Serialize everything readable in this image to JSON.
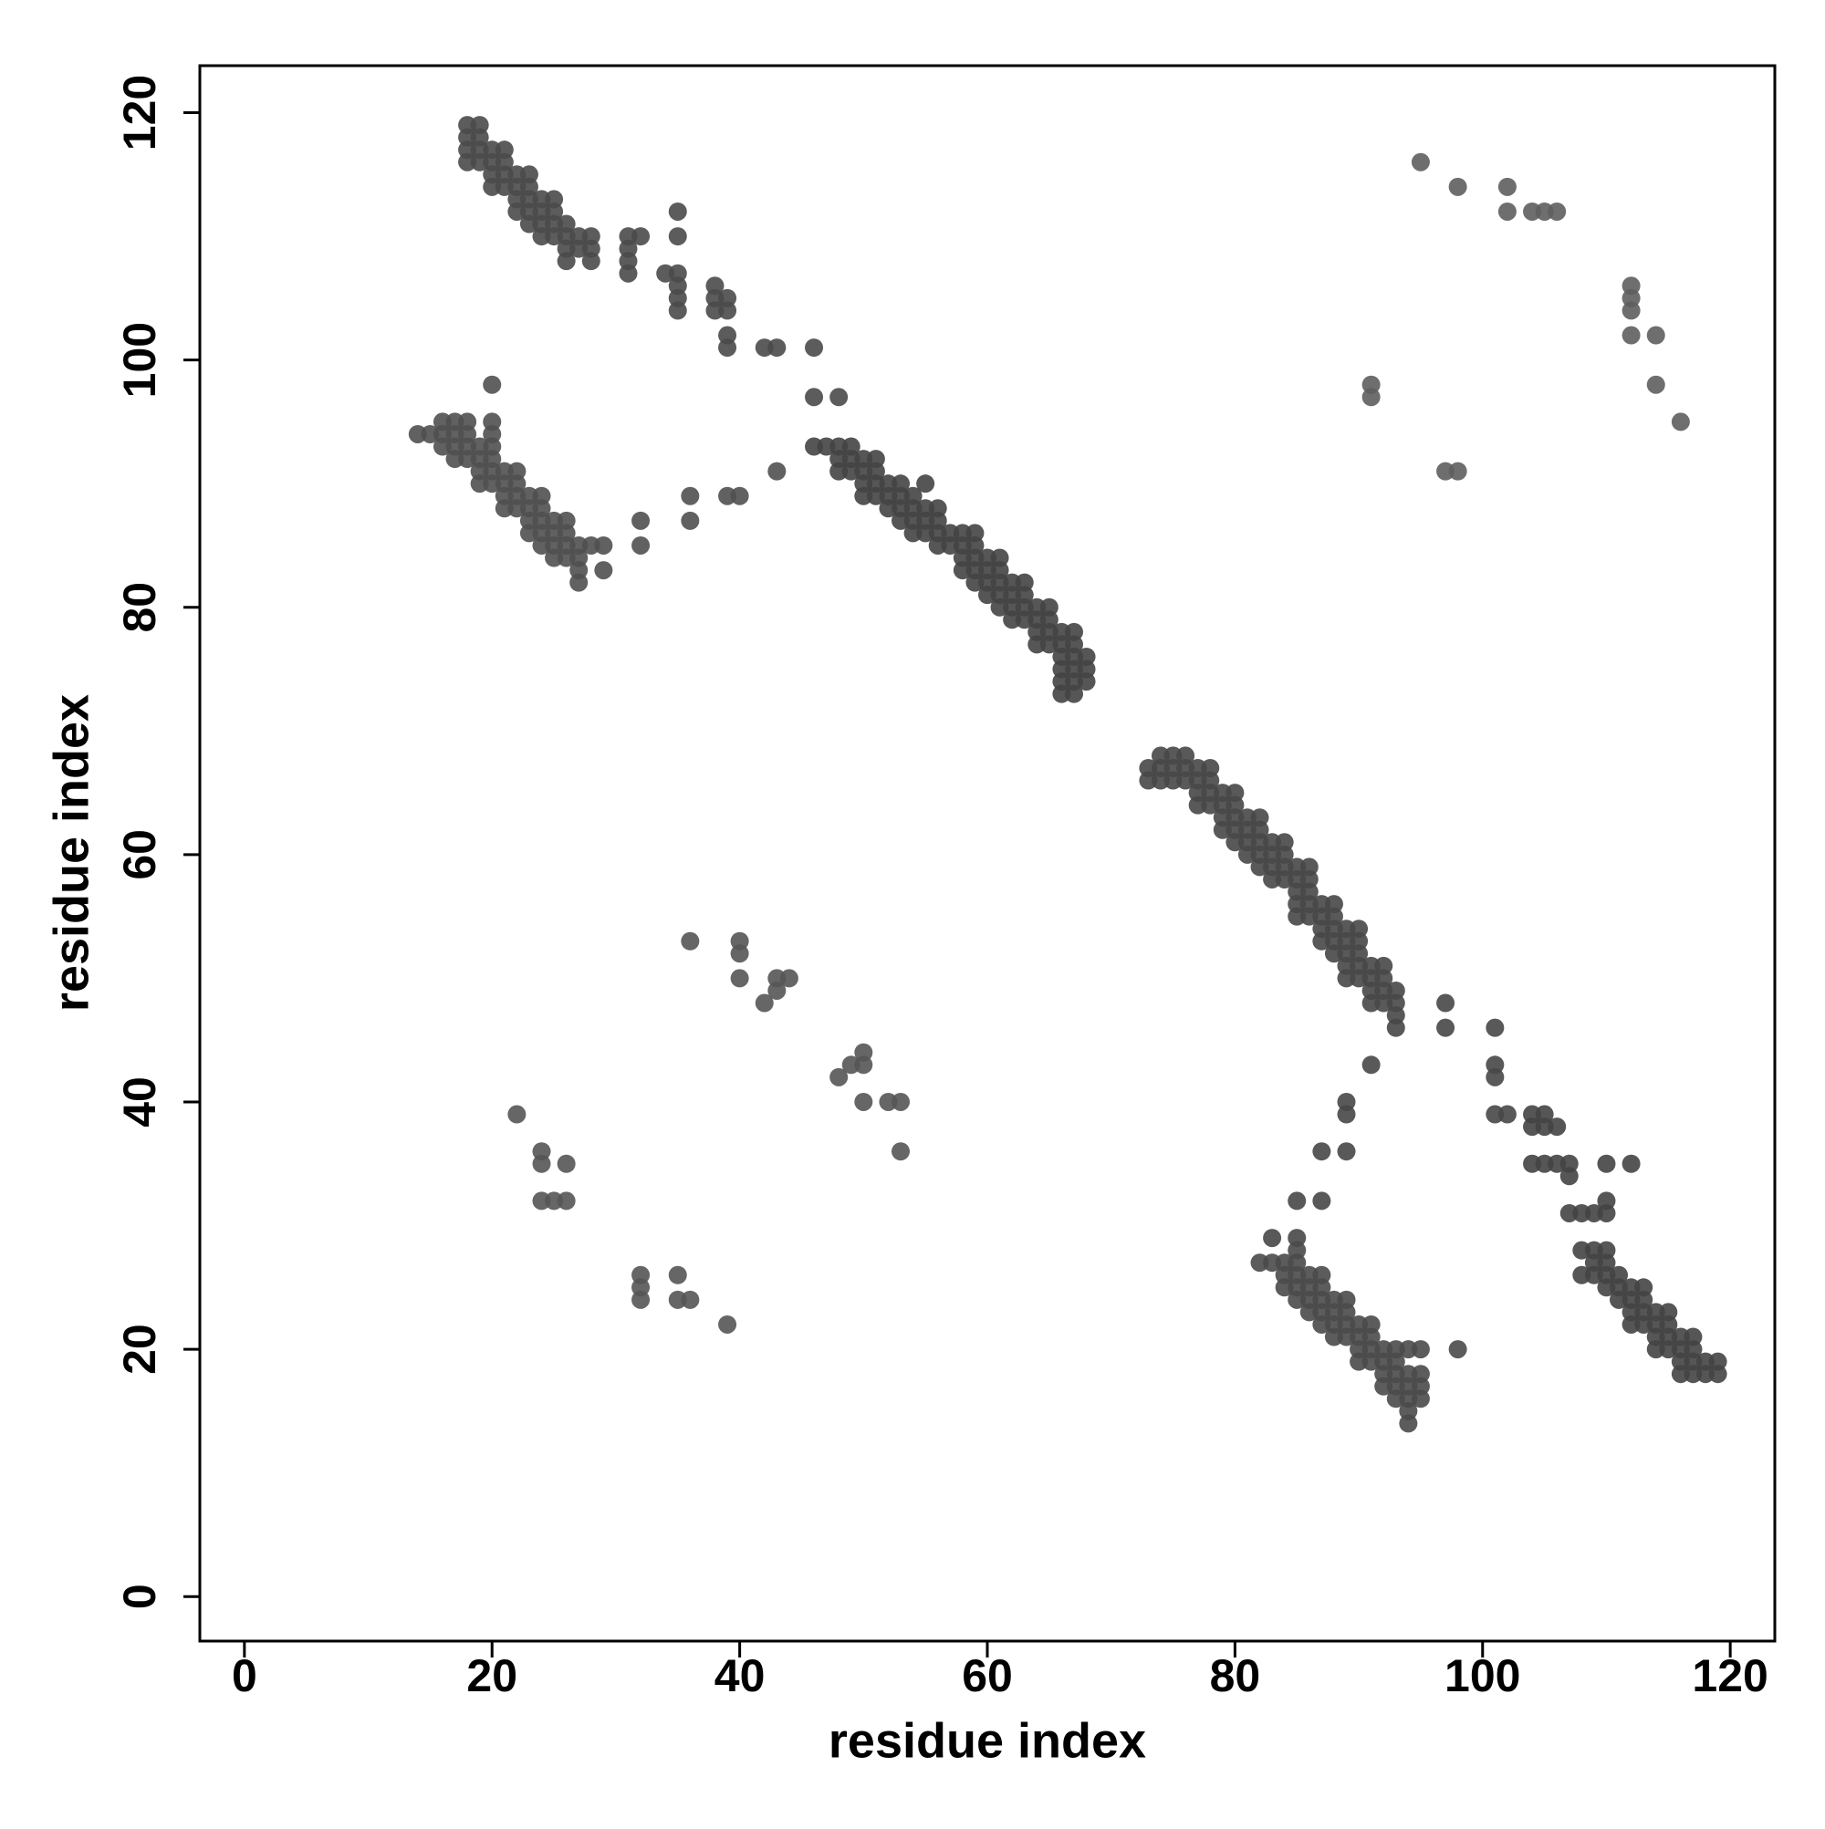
{
  "chart_data": {
    "type": "scatter",
    "x_label": "residue index",
    "y_label": "residue index",
    "xlim": [
      -3.6,
      123.6
    ],
    "ylim": [
      -3.6,
      123.8
    ],
    "xticks": [
      0,
      20,
      40,
      60,
      80,
      100,
      120
    ],
    "yticks": [
      0,
      20,
      40,
      60,
      80,
      100,
      120
    ],
    "series": [
      {
        "color": "#4a4a4a",
        "x": [
          18,
          18,
          18,
          18,
          19,
          19,
          19,
          19,
          20,
          20,
          20,
          20,
          21,
          21,
          21,
          21,
          22,
          22,
          22,
          22,
          23,
          23,
          23,
          23,
          23,
          24,
          24,
          24,
          24,
          25,
          25,
          25,
          25,
          26,
          26,
          26,
          26,
          27,
          27,
          28,
          28,
          28,
          31,
          31,
          31,
          31,
          32,
          34,
          35,
          35,
          35,
          35,
          35,
          35,
          38,
          38,
          38,
          39,
          39,
          39,
          39,
          42,
          43,
          46,
          46,
          48
        ],
        "y": [
          119,
          118,
          117,
          116,
          119,
          118,
          117,
          116,
          117,
          116,
          115,
          114,
          117,
          116,
          115,
          114,
          115,
          114,
          113,
          112,
          115,
          114,
          113,
          112,
          111,
          113,
          112,
          111,
          110,
          113,
          112,
          111,
          110,
          111,
          110,
          109,
          108,
          110,
          109,
          110,
          109,
          108,
          110,
          109,
          108,
          107,
          110,
          107,
          112,
          110,
          107,
          106,
          105,
          104,
          106,
          105,
          104,
          105,
          104,
          102,
          101,
          101,
          101,
          101,
          97,
          97
        ]
      },
      {
        "color": "#505050",
        "x": [
          14,
          15,
          16,
          16,
          16,
          17,
          17,
          17,
          17,
          18,
          18,
          18,
          18,
          19,
          19,
          19,
          19,
          20,
          20,
          20,
          20,
          20,
          20,
          20,
          21,
          21,
          21,
          21,
          22,
          22,
          22,
          22,
          23,
          23,
          23,
          23,
          24,
          24,
          24,
          24,
          24,
          25,
          25,
          25,
          25,
          26,
          26,
          26,
          26,
          27,
          27,
          27,
          27,
          28,
          29,
          29,
          32,
          32,
          36,
          36,
          39,
          40,
          43
        ],
        "y": [
          94,
          94,
          95,
          94,
          93,
          95,
          94,
          93,
          92,
          95,
          94,
          93,
          92,
          93,
          92,
          91,
          90,
          98,
          95,
          94,
          93,
          92,
          91,
          90,
          91,
          90,
          89,
          88,
          91,
          90,
          89,
          88,
          89,
          88,
          87,
          86,
          89,
          88,
          87,
          86,
          85,
          87,
          86,
          85,
          84,
          87,
          86,
          85,
          84,
          85,
          84,
          83,
          82,
          85,
          85,
          83,
          87,
          85,
          89,
          87,
          89,
          89,
          91
        ]
      },
      {
        "color": "#444444",
        "x": [
          46,
          47,
          48,
          48,
          48,
          49,
          49,
          49,
          50,
          50,
          50,
          50,
          51,
          51,
          51,
          51,
          52,
          52,
          52,
          53,
          53,
          53,
          53,
          54,
          54,
          54,
          54,
          55,
          55,
          55,
          55,
          56,
          56,
          56,
          56,
          57,
          57,
          58,
          58,
          58,
          58,
          59,
          59,
          59,
          59,
          59,
          60,
          60,
          60,
          60,
          61,
          61,
          61,
          61,
          61,
          62,
          62,
          62,
          62,
          63,
          63,
          63,
          63,
          64,
          64,
          64,
          64,
          65,
          65,
          65,
          65,
          66,
          66,
          66,
          66,
          66,
          66,
          67,
          67,
          67,
          67,
          67,
          67,
          68,
          68,
          68
        ],
        "y": [
          93,
          93,
          93,
          92,
          91,
          93,
          92,
          91,
          92,
          91,
          90,
          89,
          92,
          91,
          90,
          89,
          90,
          89,
          88,
          90,
          89,
          88,
          87,
          89,
          88,
          87,
          86,
          90,
          88,
          87,
          86,
          88,
          87,
          86,
          85,
          86,
          85,
          86,
          85,
          84,
          83,
          86,
          85,
          84,
          83,
          82,
          84,
          83,
          82,
          81,
          84,
          83,
          82,
          81,
          80,
          82,
          81,
          80,
          79,
          82,
          81,
          80,
          79,
          80,
          79,
          78,
          77,
          80,
          79,
          78,
          77,
          78,
          77,
          76,
          75,
          74,
          73,
          78,
          77,
          76,
          75,
          74,
          73,
          76,
          75,
          74
        ]
      },
      {
        "color": "#474747",
        "x": [
          73,
          73,
          74,
          74,
          74,
          75,
          75,
          75,
          76,
          76,
          76,
          77,
          77,
          77,
          77,
          78,
          78,
          78,
          78,
          79,
          79,
          79,
          79,
          80,
          80,
          80,
          80,
          80,
          81,
          81,
          81,
          81,
          82,
          82,
          82,
          82,
          82,
          83,
          83,
          83,
          83,
          84,
          84,
          84,
          84,
          85,
          85,
          85,
          85,
          85,
          86,
          86,
          86,
          86,
          86,
          87,
          87,
          87,
          87,
          88,
          88,
          88,
          88,
          88,
          89,
          89,
          89,
          89,
          89,
          90,
          90,
          90,
          90,
          90,
          91,
          91,
          91,
          91,
          92,
          92,
          92,
          92,
          93,
          93,
          93,
          93,
          97,
          97,
          101,
          101,
          101,
          101,
          102,
          91,
          89,
          89,
          89,
          87,
          85,
          87,
          85,
          83
        ],
        "y": [
          67,
          66,
          68,
          67,
          66,
          68,
          67,
          66,
          68,
          67,
          66,
          67,
          66,
          65,
          64,
          67,
          66,
          65,
          64,
          65,
          64,
          63,
          62,
          65,
          64,
          63,
          62,
          61,
          63,
          62,
          61,
          60,
          63,
          62,
          61,
          60,
          59,
          61,
          60,
          59,
          58,
          61,
          60,
          59,
          58,
          59,
          58,
          57,
          56,
          55,
          59,
          58,
          57,
          56,
          55,
          56,
          55,
          54,
          53,
          56,
          55,
          54,
          53,
          52,
          54,
          53,
          52,
          51,
          50,
          54,
          53,
          52,
          51,
          50,
          51,
          50,
          49,
          48,
          51,
          50,
          49,
          48,
          49,
          48,
          47,
          46,
          48,
          46,
          46,
          43,
          42,
          39,
          39,
          43,
          40,
          39,
          36,
          36,
          32,
          32,
          29,
          29
        ]
      },
      {
        "color": "#4a4a4a",
        "x": [
          82,
          83,
          84,
          84,
          84,
          85,
          85,
          85,
          85,
          85,
          86,
          86,
          86,
          86,
          87,
          87,
          87,
          87,
          87,
          88,
          88,
          88,
          88,
          89,
          89,
          89,
          89,
          90,
          90,
          90,
          90,
          91,
          91,
          91,
          91,
          92,
          92,
          92,
          92,
          93,
          93,
          93,
          93,
          93,
          94,
          94,
          94,
          94,
          94,
          94,
          95,
          95,
          95,
          95,
          98
        ],
        "y": [
          27,
          27,
          27,
          26,
          25,
          28,
          27,
          26,
          25,
          24,
          26,
          25,
          24,
          23,
          26,
          25,
          24,
          23,
          22,
          24,
          23,
          22,
          21,
          24,
          23,
          22,
          21,
          22,
          21,
          20,
          19,
          22,
          21,
          20,
          19,
          20,
          19,
          18,
          17,
          20,
          19,
          18,
          17,
          16,
          20,
          18,
          17,
          16,
          15,
          14,
          20,
          18,
          17,
          16,
          20
        ]
      },
      {
        "color": "#444444",
        "x": [
          104,
          104,
          104,
          105,
          105,
          105,
          106,
          106,
          107,
          107,
          107,
          108,
          109,
          110,
          110,
          110,
          112,
          108,
          108,
          109,
          109,
          109,
          110,
          110,
          110,
          110,
          111,
          111,
          111,
          112,
          112,
          112,
          112,
          113,
          113,
          113,
          113,
          114,
          114,
          114,
          114,
          115,
          115,
          115,
          115,
          116,
          116,
          116,
          116,
          117,
          117,
          117,
          117,
          118,
          118,
          119,
          119
        ],
        "y": [
          39,
          38,
          35,
          39,
          38,
          35,
          38,
          35,
          35,
          34,
          31,
          31,
          31,
          31,
          32,
          35,
          35,
          28,
          26,
          28,
          27,
          26,
          28,
          27,
          26,
          25,
          26,
          25,
          24,
          25,
          24,
          23,
          22,
          25,
          24,
          23,
          22,
          23,
          22,
          21,
          20,
          23,
          22,
          21,
          20,
          21,
          20,
          19,
          18,
          21,
          20,
          19,
          18,
          19,
          18,
          19,
          18
        ]
      },
      {
        "color": "#5e5e5e",
        "x": [
          95,
          98,
          102,
          102,
          104,
          105,
          106,
          112,
          112,
          112,
          112,
          114,
          114,
          116,
          91,
          91,
          97,
          98
        ],
        "y": [
          116,
          114,
          114,
          112,
          112,
          112,
          112,
          106,
          105,
          104,
          102,
          102,
          98,
          95,
          98,
          97,
          91,
          91
        ]
      },
      {
        "color": "#555555",
        "x": [
          22,
          24,
          24,
          24,
          25,
          26,
          26,
          32,
          32,
          32,
          35,
          35,
          36,
          39,
          36,
          40,
          40,
          40,
          42,
          43,
          43,
          44,
          48,
          49,
          50,
          50,
          50,
          52,
          53,
          53
        ],
        "y": [
          39,
          36,
          35,
          32,
          32,
          32,
          35,
          26,
          25,
          24,
          26,
          24,
          24,
          22,
          53,
          53,
          52,
          50,
          48,
          50,
          49,
          50,
          42,
          43,
          44,
          43,
          40,
          40,
          40,
          36
        ]
      }
    ]
  }
}
